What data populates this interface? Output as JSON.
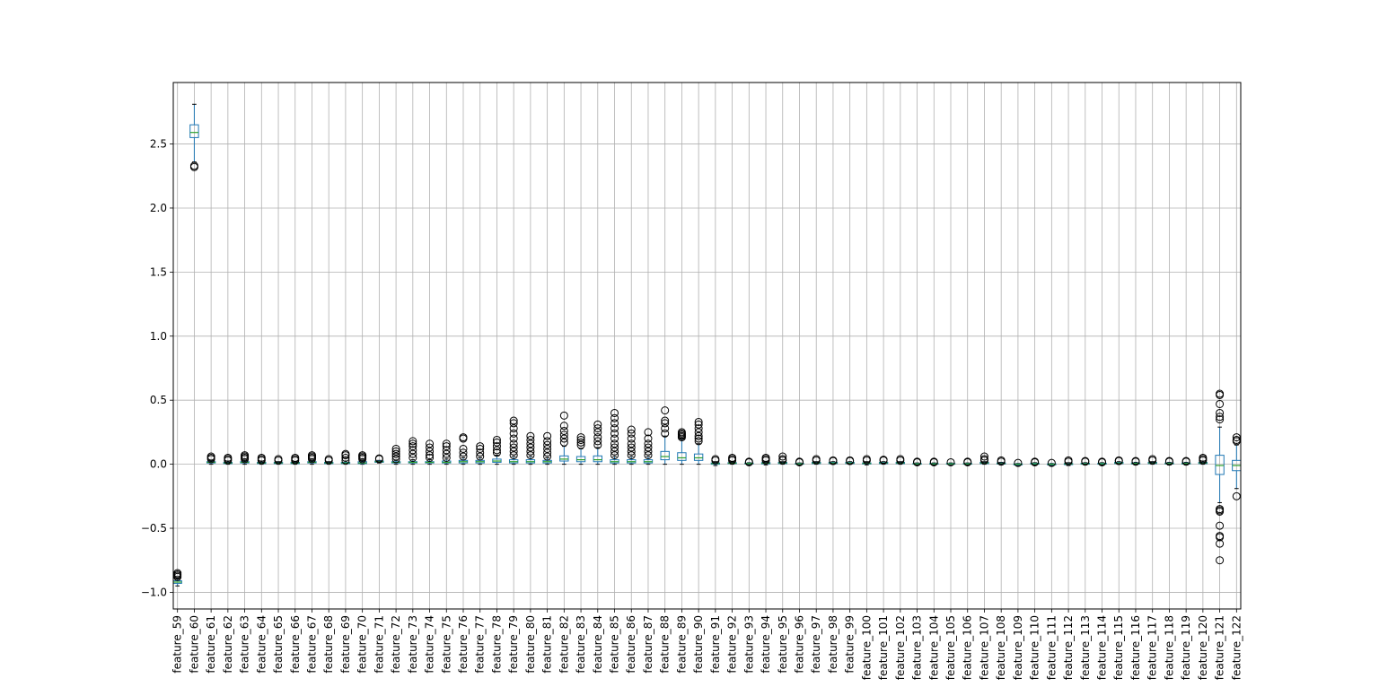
{
  "chart_data": {
    "type": "box",
    "title": "",
    "xlabel": "",
    "ylabel": "",
    "ylim": [
      -1.13,
      2.98
    ],
    "yticks": [
      -1.0,
      -0.5,
      0.0,
      0.5,
      1.0,
      1.5,
      2.0,
      2.5
    ],
    "ytick_labels": [
      "−1.0",
      "−0.5",
      "0.0",
      "0.5",
      "1.0",
      "1.5",
      "2.0",
      "2.5"
    ],
    "grid": true,
    "legend": "none",
    "colors": {
      "box": "#1f77b4",
      "median": "#2ca02c",
      "whisker": "#000000",
      "flier": "#000000",
      "grid": "#b0b0b0"
    },
    "categories": [
      "feature_59",
      "feature_60",
      "feature_61",
      "feature_62",
      "feature_63",
      "feature_64",
      "feature_65",
      "feature_66",
      "feature_67",
      "feature_68",
      "feature_69",
      "feature_70",
      "feature_71",
      "feature_72",
      "feature_73",
      "feature_74",
      "feature_75",
      "feature_76",
      "feature_77",
      "feature_78",
      "feature_79",
      "feature_80",
      "feature_81",
      "feature_82",
      "feature_83",
      "feature_84",
      "feature_85",
      "feature_86",
      "feature_87",
      "feature_88",
      "feature_89",
      "feature_90",
      "feature_91",
      "feature_92",
      "feature_93",
      "feature_94",
      "feature_95",
      "feature_96",
      "feature_97",
      "feature_98",
      "feature_99",
      "feature_100",
      "feature_101",
      "feature_102",
      "feature_103",
      "feature_104",
      "feature_105",
      "feature_106",
      "feature_107",
      "feature_108",
      "feature_109",
      "feature_110",
      "feature_111",
      "feature_112",
      "feature_113",
      "feature_114",
      "feature_115",
      "feature_116",
      "feature_117",
      "feature_118",
      "feature_119",
      "feature_120",
      "feature_121",
      "feature_122"
    ],
    "boxes": [
      {
        "min": -0.95,
        "q1": -0.93,
        "median": -0.92,
        "q3": -0.91,
        "max": -0.89,
        "fliers": [
          -0.85,
          -0.86,
          -0.87,
          -0.88
        ]
      },
      {
        "min": 2.36,
        "q1": 2.55,
        "median": 2.59,
        "q3": 2.65,
        "max": 2.81,
        "fliers": [
          2.32,
          2.33
        ]
      },
      {
        "min": 0.0,
        "q1": 0.01,
        "median": 0.015,
        "q3": 0.02,
        "max": 0.03,
        "fliers": [
          0.04,
          0.05,
          0.06
        ]
      },
      {
        "min": 0.0,
        "q1": 0.005,
        "median": 0.01,
        "q3": 0.015,
        "max": 0.025,
        "fliers": [
          0.03,
          0.04,
          0.05
        ]
      },
      {
        "min": 0.0,
        "q1": 0.01,
        "median": 0.015,
        "q3": 0.02,
        "max": 0.03,
        "fliers": [
          0.04,
          0.05,
          0.06,
          0.07
        ]
      },
      {
        "min": 0.0,
        "q1": 0.005,
        "median": 0.01,
        "q3": 0.015,
        "max": 0.025,
        "fliers": [
          0.03,
          0.04,
          0.05
        ]
      },
      {
        "min": 0.0,
        "q1": 0.005,
        "median": 0.01,
        "q3": 0.015,
        "max": 0.02,
        "fliers": [
          0.03,
          0.04
        ]
      },
      {
        "min": 0.0,
        "q1": 0.005,
        "median": 0.01,
        "q3": 0.015,
        "max": 0.02,
        "fliers": [
          0.03,
          0.04,
          0.05
        ]
      },
      {
        "min": 0.0,
        "q1": 0.01,
        "median": 0.015,
        "q3": 0.02,
        "max": 0.03,
        "fliers": [
          0.04,
          0.05,
          0.06,
          0.07
        ]
      },
      {
        "min": 0.0,
        "q1": 0.005,
        "median": 0.01,
        "q3": 0.015,
        "max": 0.02,
        "fliers": [
          0.03,
          0.04
        ]
      },
      {
        "min": 0.0,
        "q1": 0.005,
        "median": 0.01,
        "q3": 0.015,
        "max": 0.025,
        "fliers": [
          0.03,
          0.05,
          0.07,
          0.08
        ]
      },
      {
        "min": 0.0,
        "q1": 0.005,
        "median": 0.01,
        "q3": 0.02,
        "max": 0.03,
        "fliers": [
          0.04,
          0.05,
          0.06,
          0.07
        ]
      },
      {
        "min": 0.01,
        "q1": 0.015,
        "median": 0.02,
        "q3": 0.025,
        "max": 0.03,
        "fliers": [
          0.04,
          0.045
        ]
      },
      {
        "min": 0.0,
        "q1": 0.01,
        "median": 0.015,
        "q3": 0.02,
        "max": 0.03,
        "fliers": [
          0.04,
          0.06,
          0.08,
          0.1,
          0.12
        ]
      },
      {
        "min": 0.0,
        "q1": 0.01,
        "median": 0.015,
        "q3": 0.02,
        "max": 0.035,
        "fliers": [
          0.05,
          0.08,
          0.11,
          0.14,
          0.16,
          0.18
        ]
      },
      {
        "min": 0.0,
        "q1": 0.01,
        "median": 0.015,
        "q3": 0.02,
        "max": 0.035,
        "fliers": [
          0.05,
          0.07,
          0.1,
          0.13,
          0.16
        ]
      },
      {
        "min": 0.0,
        "q1": 0.01,
        "median": 0.015,
        "q3": 0.025,
        "max": 0.04,
        "fliers": [
          0.05,
          0.08,
          0.11,
          0.14,
          0.16
        ]
      },
      {
        "min": 0.0,
        "q1": 0.01,
        "median": 0.02,
        "q3": 0.03,
        "max": 0.05,
        "fliers": [
          0.06,
          0.09,
          0.12,
          0.2,
          0.21
        ]
      },
      {
        "min": 0.0,
        "q1": 0.01,
        "median": 0.02,
        "q3": 0.03,
        "max": 0.05,
        "fliers": [
          0.06,
          0.09,
          0.12,
          0.14
        ]
      },
      {
        "min": 0.0,
        "q1": 0.015,
        "median": 0.025,
        "q3": 0.04,
        "max": 0.07,
        "fliers": [
          0.09,
          0.11,
          0.14,
          0.17,
          0.19
        ]
      },
      {
        "min": 0.0,
        "q1": 0.01,
        "median": 0.02,
        "q3": 0.035,
        "max": 0.06,
        "fliers": [
          0.07,
          0.1,
          0.13,
          0.16,
          0.2,
          0.24,
          0.28,
          0.32,
          0.34
        ]
      },
      {
        "min": 0.0,
        "q1": 0.01,
        "median": 0.02,
        "q3": 0.035,
        "max": 0.06,
        "fliers": [
          0.07,
          0.1,
          0.13,
          0.16,
          0.19,
          0.22
        ]
      },
      {
        "min": 0.0,
        "q1": 0.01,
        "median": 0.02,
        "q3": 0.03,
        "max": 0.05,
        "fliers": [
          0.06,
          0.09,
          0.12,
          0.15,
          0.18,
          0.22
        ]
      },
      {
        "min": 0.0,
        "q1": 0.025,
        "median": 0.04,
        "q3": 0.065,
        "max": 0.14,
        "fliers": [
          0.17,
          0.2,
          0.23,
          0.26,
          0.3,
          0.38
        ]
      },
      {
        "min": 0.0,
        "q1": 0.02,
        "median": 0.035,
        "q3": 0.06,
        "max": 0.12,
        "fliers": [
          0.15,
          0.17,
          0.19,
          0.21
        ]
      },
      {
        "min": 0.0,
        "q1": 0.02,
        "median": 0.035,
        "q3": 0.065,
        "max": 0.13,
        "fliers": [
          0.15,
          0.18,
          0.21,
          0.25,
          0.28,
          0.31
        ]
      },
      {
        "min": 0.0,
        "q1": 0.01,
        "median": 0.02,
        "q3": 0.035,
        "max": 0.06,
        "fliers": [
          0.07,
          0.1,
          0.13,
          0.16,
          0.2,
          0.24,
          0.28,
          0.32,
          0.36,
          0.4
        ]
      },
      {
        "min": 0.0,
        "q1": 0.01,
        "median": 0.02,
        "q3": 0.035,
        "max": 0.06,
        "fliers": [
          0.07,
          0.1,
          0.13,
          0.16,
          0.2,
          0.24,
          0.27
        ]
      },
      {
        "min": 0.0,
        "q1": 0.01,
        "median": 0.02,
        "q3": 0.035,
        "max": 0.06,
        "fliers": [
          0.07,
          0.1,
          0.13,
          0.16,
          0.2,
          0.25
        ]
      },
      {
        "min": 0.0,
        "q1": 0.035,
        "median": 0.06,
        "q3": 0.1,
        "max": 0.22,
        "fliers": [
          0.24,
          0.28,
          0.32,
          0.34,
          0.42
        ]
      },
      {
        "min": 0.0,
        "q1": 0.03,
        "median": 0.05,
        "q3": 0.09,
        "max": 0.2,
        "fliers": [
          0.21,
          0.22,
          0.23,
          0.24,
          0.25
        ]
      },
      {
        "min": 0.0,
        "q1": 0.03,
        "median": 0.05,
        "q3": 0.08,
        "max": 0.16,
        "fliers": [
          0.18,
          0.2,
          0.22,
          0.25,
          0.28,
          0.31,
          0.33
        ]
      },
      {
        "min": -0.01,
        "q1": 0.0,
        "median": 0.005,
        "q3": 0.01,
        "max": 0.02,
        "fliers": [
          0.03,
          0.04
        ]
      },
      {
        "min": 0.0,
        "q1": 0.005,
        "median": 0.008,
        "q3": 0.012,
        "max": 0.02,
        "fliers": [
          0.03,
          0.04,
          0.05
        ]
      },
      {
        "min": 0.0,
        "q1": 0.003,
        "median": 0.006,
        "q3": 0.009,
        "max": 0.012,
        "fliers": [
          0.015,
          0.02
        ]
      },
      {
        "min": -0.005,
        "q1": 0.003,
        "median": 0.008,
        "q3": 0.013,
        "max": 0.02,
        "fliers": [
          0.03,
          0.04,
          0.05
        ]
      },
      {
        "min": 0.0,
        "q1": 0.005,
        "median": 0.01,
        "q3": 0.015,
        "max": 0.02,
        "fliers": [
          0.03,
          0.04,
          0.06
        ]
      },
      {
        "min": -0.005,
        "q1": 0.0,
        "median": 0.003,
        "q3": 0.006,
        "max": 0.01,
        "fliers": [
          0.015,
          0.02
        ]
      },
      {
        "min": 0.0,
        "q1": 0.005,
        "median": 0.01,
        "q3": 0.015,
        "max": 0.02,
        "fliers": [
          0.03,
          0.04
        ]
      },
      {
        "min": 0.0,
        "q1": 0.005,
        "median": 0.01,
        "q3": 0.015,
        "max": 0.02,
        "fliers": [
          0.025,
          0.03
        ]
      },
      {
        "min": 0.0,
        "q1": 0.005,
        "median": 0.01,
        "q3": 0.015,
        "max": 0.02,
        "fliers": [
          0.025,
          0.03
        ]
      },
      {
        "min": -0.005,
        "q1": 0.002,
        "median": 0.006,
        "q3": 0.01,
        "max": 0.02,
        "fliers": [
          0.03,
          0.04
        ]
      },
      {
        "min": 0.0,
        "q1": 0.005,
        "median": 0.01,
        "q3": 0.015,
        "max": 0.02,
        "fliers": [
          0.03,
          0.035
        ]
      },
      {
        "min": 0.0,
        "q1": 0.005,
        "median": 0.01,
        "q3": 0.015,
        "max": 0.02,
        "fliers": [
          0.03,
          0.04
        ]
      },
      {
        "min": -0.005,
        "q1": 0.0,
        "median": 0.003,
        "q3": 0.006,
        "max": 0.01,
        "fliers": [
          0.015,
          0.02
        ]
      },
      {
        "min": -0.005,
        "q1": 0.0,
        "median": 0.003,
        "q3": 0.006,
        "max": 0.01,
        "fliers": [
          0.015,
          0.02
        ]
      },
      {
        "min": -0.005,
        "q1": 0.0,
        "median": 0.003,
        "q3": 0.006,
        "max": 0.01,
        "fliers": [
          0.015
        ]
      },
      {
        "min": -0.005,
        "q1": 0.0,
        "median": 0.003,
        "q3": 0.006,
        "max": 0.01,
        "fliers": [
          0.015,
          0.02
        ]
      },
      {
        "min": 0.0,
        "q1": 0.005,
        "median": 0.01,
        "q3": 0.015,
        "max": 0.02,
        "fliers": [
          0.03,
          0.04,
          0.06
        ]
      },
      {
        "min": -0.005,
        "q1": 0.002,
        "median": 0.006,
        "q3": 0.01,
        "max": 0.015,
        "fliers": [
          0.02,
          0.03
        ]
      },
      {
        "min": -0.01,
        "q1": -0.005,
        "median": 0.0,
        "q3": 0.003,
        "max": 0.006,
        "fliers": [
          0.01
        ]
      },
      {
        "min": -0.005,
        "q1": 0.0,
        "median": 0.004,
        "q3": 0.008,
        "max": 0.012,
        "fliers": [
          0.015,
          0.02
        ]
      },
      {
        "min": -0.01,
        "q1": -0.005,
        "median": 0.0,
        "q3": 0.003,
        "max": 0.006,
        "fliers": [
          0.01
        ]
      },
      {
        "min": -0.01,
        "q1": -0.003,
        "median": 0.002,
        "q3": 0.006,
        "max": 0.012,
        "fliers": [
          0.02,
          0.03
        ]
      },
      {
        "min": -0.005,
        "q1": 0.0,
        "median": 0.004,
        "q3": 0.008,
        "max": 0.012,
        "fliers": [
          0.02,
          0.025
        ]
      },
      {
        "min": -0.005,
        "q1": 0.0,
        "median": 0.004,
        "q3": 0.008,
        "max": 0.012,
        "fliers": [
          0.015,
          0.02
        ]
      },
      {
        "min": 0.0,
        "q1": 0.005,
        "median": 0.01,
        "q3": 0.015,
        "max": 0.02,
        "fliers": [
          0.025,
          0.03
        ]
      },
      {
        "min": -0.005,
        "q1": 0.002,
        "median": 0.006,
        "q3": 0.01,
        "max": 0.015,
        "fliers": [
          0.02,
          0.025
        ]
      },
      {
        "min": 0.0,
        "q1": 0.005,
        "median": 0.01,
        "q3": 0.015,
        "max": 0.02,
        "fliers": [
          0.03,
          0.04
        ]
      },
      {
        "min": -0.005,
        "q1": 0.002,
        "median": 0.006,
        "q3": 0.01,
        "max": 0.015,
        "fliers": [
          0.02,
          0.025
        ]
      },
      {
        "min": -0.005,
        "q1": 0.002,
        "median": 0.006,
        "q3": 0.01,
        "max": 0.015,
        "fliers": [
          0.02,
          0.025
        ]
      },
      {
        "min": 0.0,
        "q1": 0.005,
        "median": 0.01,
        "q3": 0.015,
        "max": 0.025,
        "fliers": [
          0.03,
          0.04,
          0.05
        ]
      },
      {
        "min": -0.3,
        "q1": -0.08,
        "median": -0.01,
        "q3": 0.07,
        "max": 0.29,
        "fliers": [
          -0.75,
          -0.62,
          -0.57,
          -0.56,
          -0.48,
          -0.37,
          -0.36,
          -0.35,
          0.35,
          0.37,
          0.4,
          0.47,
          0.54,
          0.55
        ]
      },
      {
        "min": -0.19,
        "q1": -0.05,
        "median": -0.01,
        "q3": 0.03,
        "max": 0.15,
        "fliers": [
          -0.25,
          0.18,
          0.19,
          0.21
        ]
      }
    ]
  }
}
